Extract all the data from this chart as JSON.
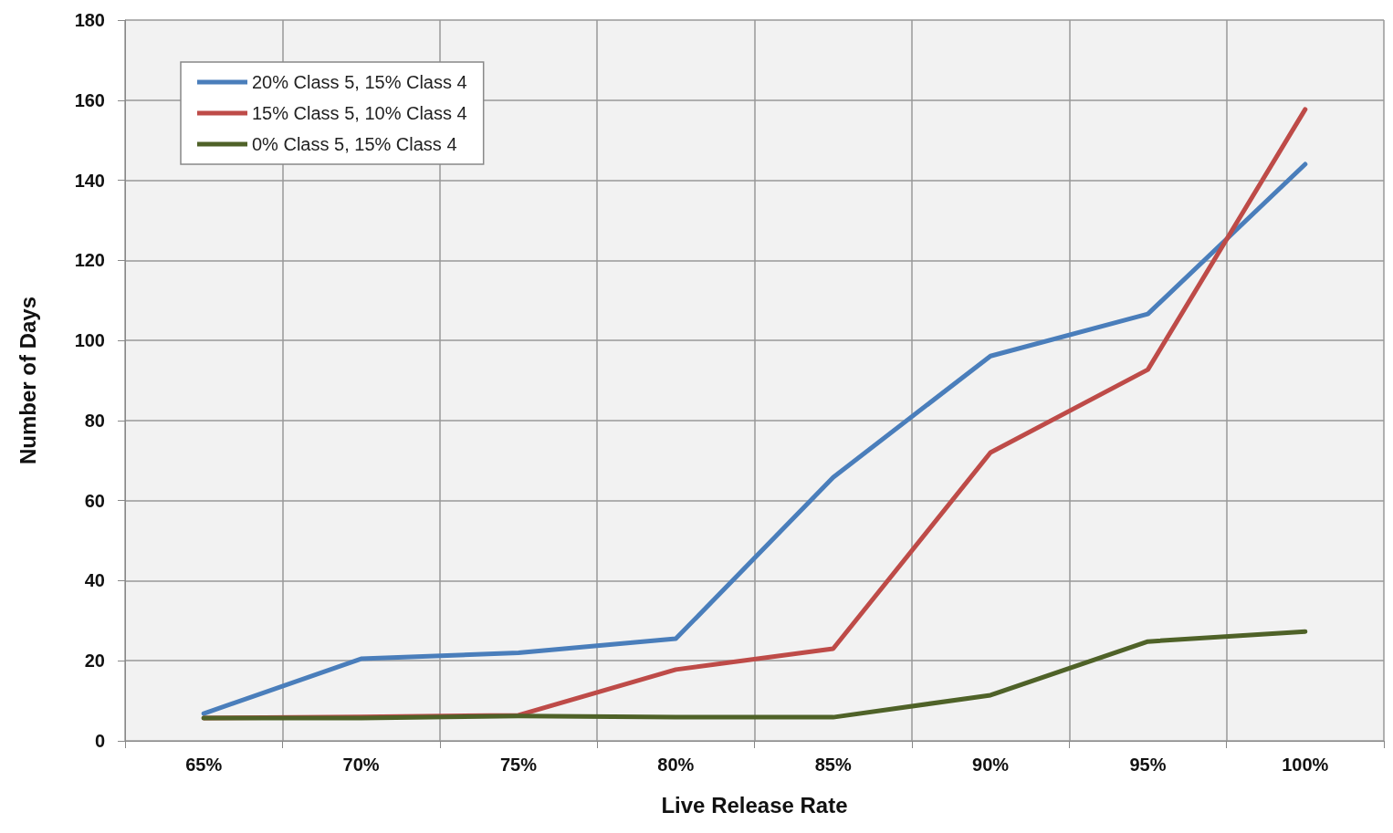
{
  "chart_data": {
    "type": "line",
    "xlabel": "Live Release Rate",
    "ylabel": "Number of Days",
    "categories": [
      "65%",
      "70%",
      "75%",
      "80%",
      "85%",
      "90%",
      "95%",
      "100%"
    ],
    "series": [
      {
        "name": "20% Class 5, 15% Class 4",
        "color": "#4a7ebb",
        "values": [
          6.8,
          20.5,
          22,
          25.5,
          65.8,
          96.1,
          106.6,
          144
        ]
      },
      {
        "name": "15% Class 5, 10% Class 4",
        "color": "#be4b48",
        "values": [
          5.7,
          6,
          6.4,
          17.8,
          23,
          72,
          92.7,
          157.7
        ]
      },
      {
        "name": "0% Class 5, 15% Class 4",
        "color": "#4f6228",
        "values": [
          5.7,
          5.7,
          6.2,
          5.9,
          5.9,
          11.4,
          24.8,
          27.3
        ]
      }
    ],
    "ylim": [
      0,
      180
    ],
    "yticks": [
      0,
      20,
      40,
      60,
      80,
      100,
      120,
      140,
      160,
      180
    ],
    "grid": true,
    "legend": "top left",
    "marker": "none",
    "line_style": "solid"
  }
}
